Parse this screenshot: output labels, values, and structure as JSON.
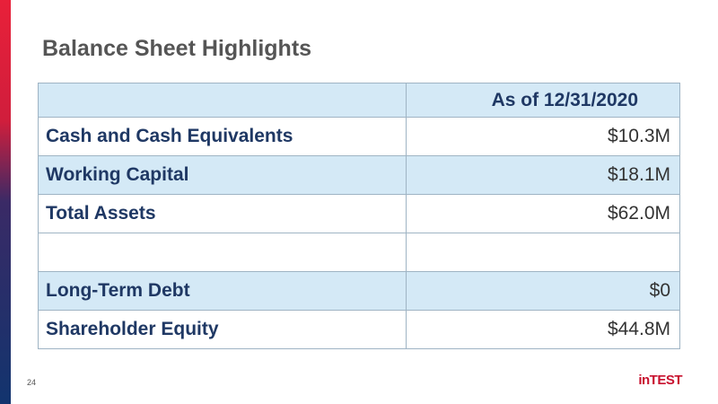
{
  "title": "Balance Sheet Highlights",
  "table": {
    "header": "As of 12/31/2020",
    "rows": [
      [
        "Cash and Cash Equivalents",
        "$10.3M"
      ],
      [
        "Working Capital",
        "$18.1M"
      ],
      [
        "Total Assets",
        "$62.0M"
      ],
      [
        "Long-Term Debt",
        "$0"
      ],
      [
        "Shareholder Equity",
        "$44.8M"
      ]
    ]
  },
  "footer": {
    "page": "24",
    "logo": "inTEST"
  }
}
